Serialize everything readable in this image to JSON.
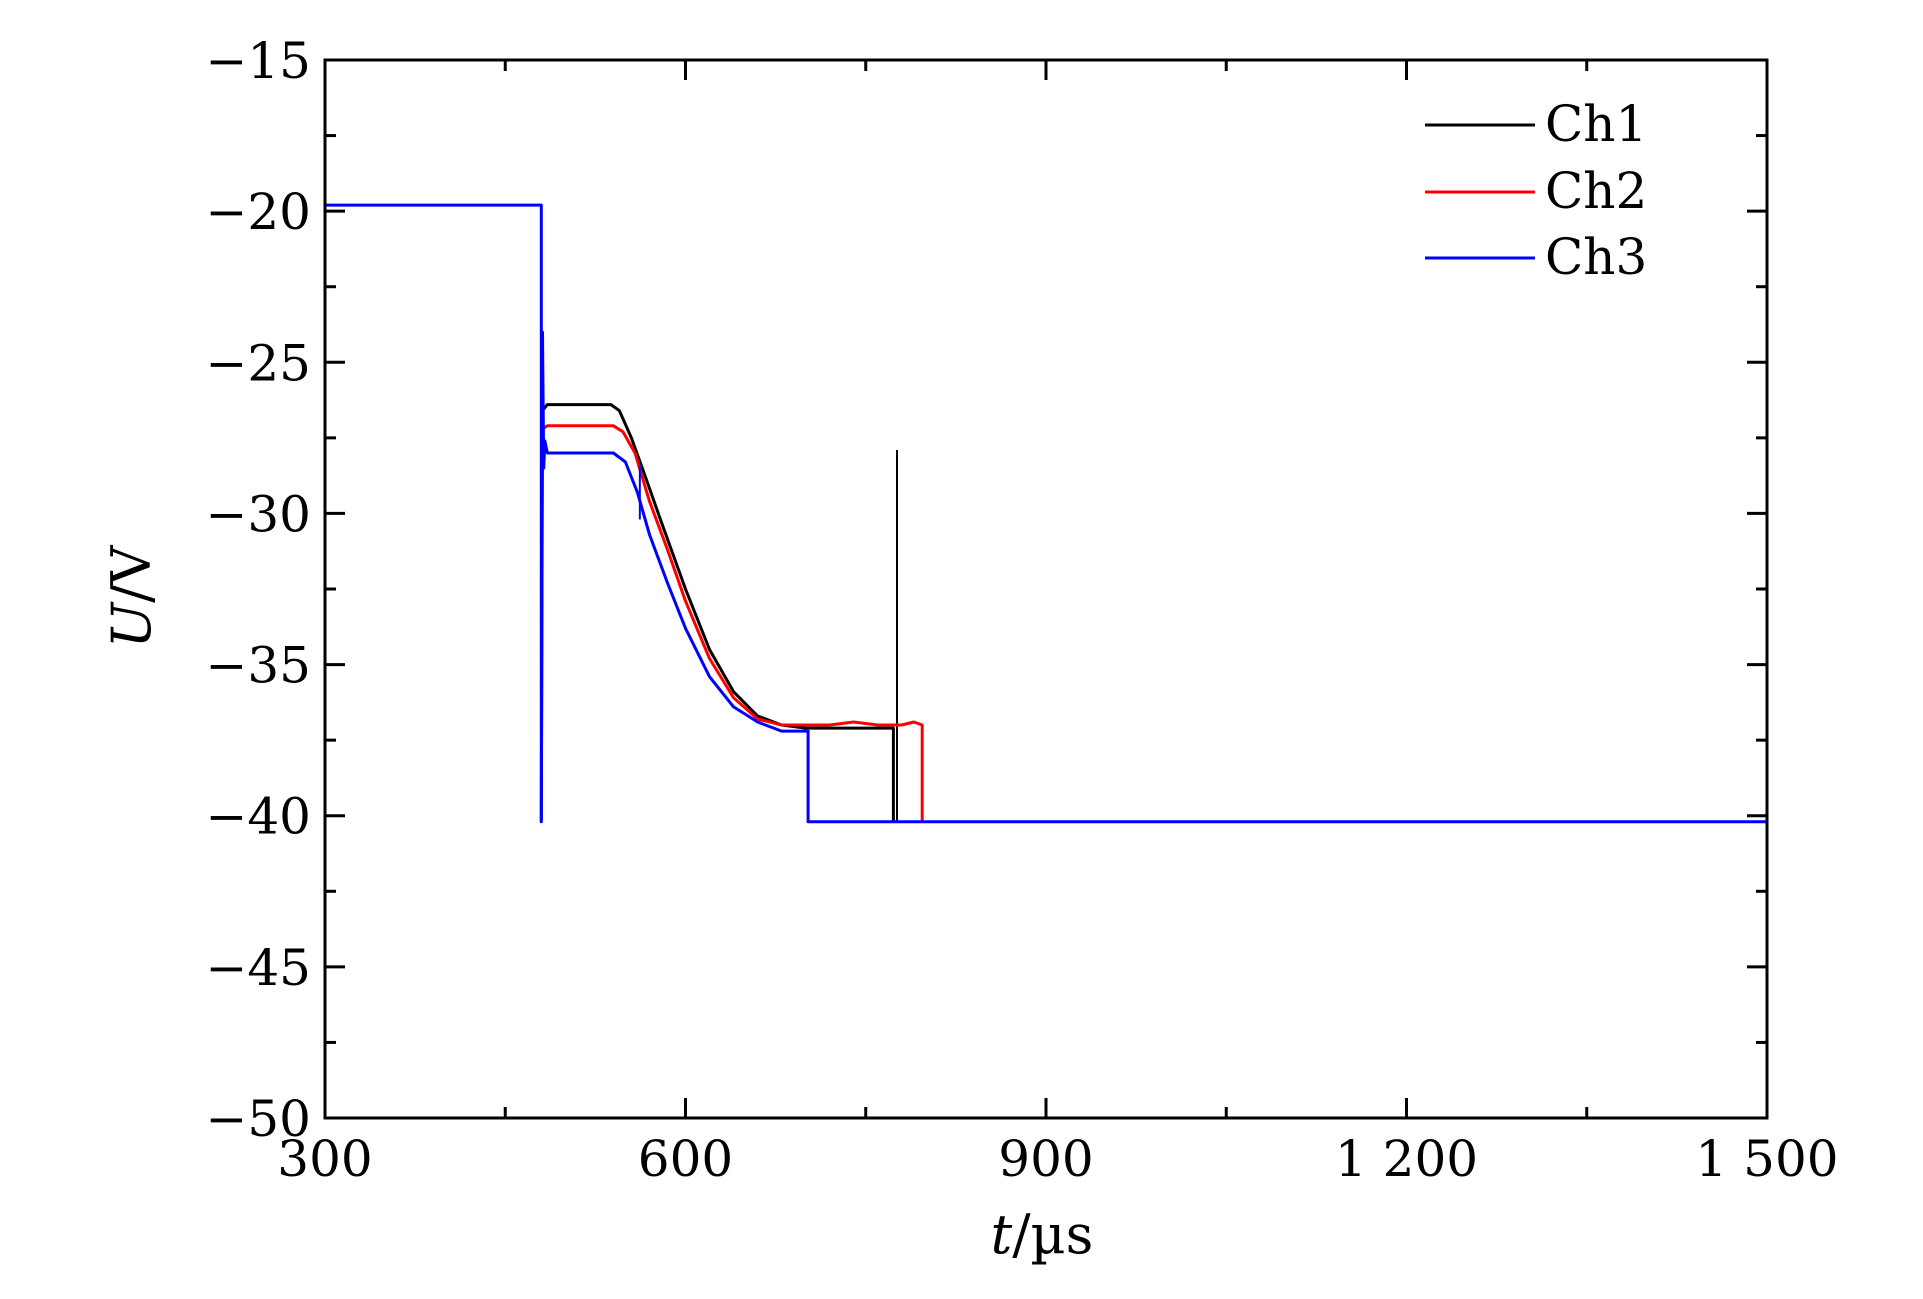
{
  "chart_data": {
    "type": "line",
    "xlabel": {
      "var": "t",
      "unit": "/µs"
    },
    "ylabel": {
      "var": "U",
      "unit": "/V"
    },
    "xlim": [
      300,
      1500
    ],
    "ylim": [
      -50,
      -15
    ],
    "x_ticks": [
      300,
      600,
      900,
      1200,
      1500
    ],
    "x_tick_labels": [
      "300",
      "600",
      "900",
      "1 200",
      "1 500"
    ],
    "x_minor_ticks": [
      450,
      750,
      1050,
      1350
    ],
    "y_ticks": [
      -15,
      -20,
      -25,
      -30,
      -35,
      -40,
      -45,
      -50
    ],
    "y_tick_labels": [
      "−15",
      "−20",
      "−25",
      "−30",
      "−35",
      "−40",
      "−45",
      "−50"
    ],
    "y_minor_step": 2.5,
    "grid": false,
    "legend": "top-right",
    "series": [
      {
        "name": "Ch1",
        "color": "#000000",
        "points": [
          [
            480,
            -40.2
          ],
          [
            481,
            -26.6
          ],
          [
            485,
            -26.4
          ],
          [
            500,
            -26.4
          ],
          [
            520,
            -26.4
          ],
          [
            538,
            -26.4
          ],
          [
            545,
            -26.6
          ],
          [
            555,
            -27.5
          ],
          [
            565,
            -28.6
          ],
          [
            580,
            -30.3
          ],
          [
            600,
            -32.5
          ],
          [
            620,
            -34.5
          ],
          [
            640,
            -35.9
          ],
          [
            660,
            -36.7
          ],
          [
            680,
            -37.0
          ],
          [
            700,
            -37.1
          ],
          [
            720,
            -37.1
          ],
          [
            740,
            -37.1
          ],
          [
            760,
            -37.1
          ],
          [
            773,
            -37.1
          ],
          [
            773,
            -40.2
          ]
        ],
        "spike": {
          "x": 776,
          "y_from": -40.2,
          "y_to": -27.9
        }
      },
      {
        "name": "Ch2",
        "color": "#ff0000",
        "points": [
          [
            481,
            -27.2
          ],
          [
            485,
            -27.1
          ],
          [
            500,
            -27.1
          ],
          [
            520,
            -27.1
          ],
          [
            540,
            -27.1
          ],
          [
            548,
            -27.3
          ],
          [
            558,
            -28.0
          ],
          [
            570,
            -29.6
          ],
          [
            585,
            -31.2
          ],
          [
            600,
            -32.9
          ],
          [
            620,
            -34.8
          ],
          [
            640,
            -36.1
          ],
          [
            660,
            -36.8
          ],
          [
            680,
            -37.0
          ],
          [
            700,
            -37.0
          ],
          [
            720,
            -37.0
          ],
          [
            740,
            -36.9
          ],
          [
            760,
            -37.0
          ],
          [
            780,
            -37.0
          ],
          [
            790,
            -36.9
          ],
          [
            797,
            -37.0
          ],
          [
            797,
            -40.2
          ]
        ]
      },
      {
        "name": "Ch3",
        "color": "#0000ff",
        "points": [
          [
            300,
            -19.8
          ],
          [
            480,
            -19.8
          ],
          [
            480,
            -40.2
          ],
          [
            481,
            -24.0
          ],
          [
            482,
            -28.5
          ],
          [
            483,
            -27.6
          ],
          [
            485,
            -28.0
          ],
          [
            500,
            -28.0
          ],
          [
            520,
            -28.0
          ],
          [
            540,
            -28.0
          ],
          [
            550,
            -28.3
          ],
          [
            560,
            -29.3
          ],
          [
            570,
            -30.7
          ],
          [
            585,
            -32.3
          ],
          [
            600,
            -33.8
          ],
          [
            620,
            -35.4
          ],
          [
            640,
            -36.4
          ],
          [
            660,
            -36.9
          ],
          [
            680,
            -37.2
          ],
          [
            700,
            -37.2
          ],
          [
            702,
            -37.2
          ],
          [
            702,
            -40.2
          ],
          [
            1500,
            -40.2
          ]
        ],
        "glitch": {
          "x": 562,
          "y_from": -28.4,
          "y_to": -30.2
        }
      }
    ]
  }
}
